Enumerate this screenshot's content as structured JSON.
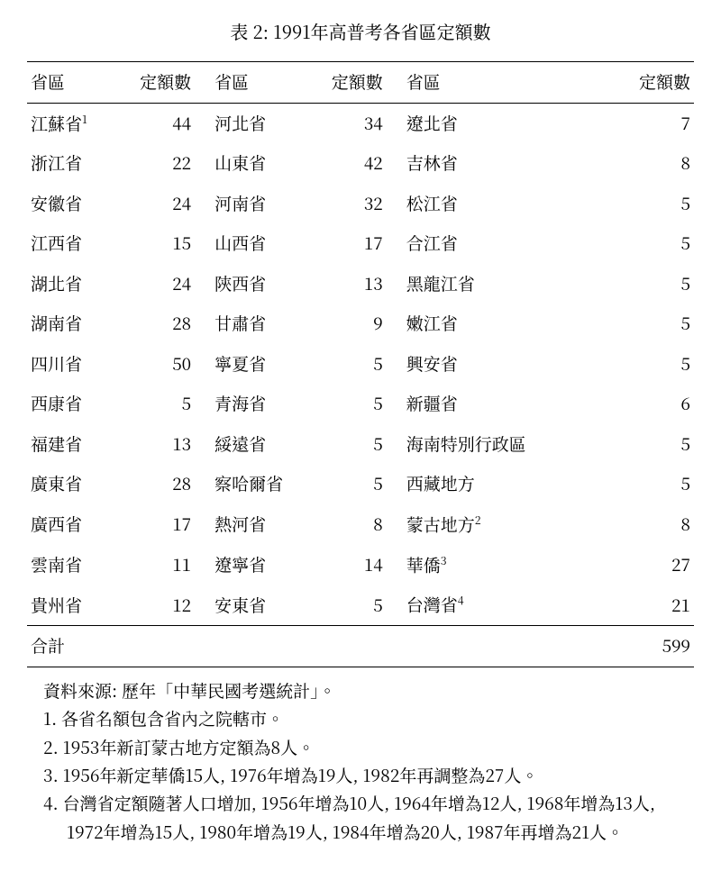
{
  "caption": "表 2: 1991年高普考各省區定額數",
  "headers": {
    "province": "省區",
    "quota": "定額數"
  },
  "columnGroups": [
    [
      {
        "province": "江蘇省",
        "sup": "1",
        "quota": 44
      },
      {
        "province": "浙江省",
        "quota": 22
      },
      {
        "province": "安徽省",
        "quota": 24
      },
      {
        "province": "江西省",
        "quota": 15
      },
      {
        "province": "湖北省",
        "quota": 24
      },
      {
        "province": "湖南省",
        "quota": 28
      },
      {
        "province": "四川省",
        "quota": 50
      },
      {
        "province": "西康省",
        "quota": 5
      },
      {
        "province": "福建省",
        "quota": 13
      },
      {
        "province": "廣東省",
        "quota": 28
      },
      {
        "province": "廣西省",
        "quota": 17
      },
      {
        "province": "雲南省",
        "quota": 11
      },
      {
        "province": "貴州省",
        "quota": 12
      }
    ],
    [
      {
        "province": "河北省",
        "quota": 34
      },
      {
        "province": "山東省",
        "quota": 42
      },
      {
        "province": "河南省",
        "quota": 32
      },
      {
        "province": "山西省",
        "quota": 17
      },
      {
        "province": "陝西省",
        "quota": 13
      },
      {
        "province": "甘肅省",
        "quota": 9
      },
      {
        "province": "寧夏省",
        "quota": 5
      },
      {
        "province": "青海省",
        "quota": 5
      },
      {
        "province": "綏遠省",
        "quota": 5
      },
      {
        "province": "察哈爾省",
        "quota": 5
      },
      {
        "province": "熱河省",
        "quota": 8
      },
      {
        "province": "遼寧省",
        "quota": 14
      },
      {
        "province": "安東省",
        "quota": 5
      }
    ],
    [
      {
        "province": "遼北省",
        "quota": 7
      },
      {
        "province": "吉林省",
        "quota": 8
      },
      {
        "province": "松江省",
        "quota": 5
      },
      {
        "province": "合江省",
        "quota": 5
      },
      {
        "province": "黑龍江省",
        "quota": 5
      },
      {
        "province": "嫩江省",
        "quota": 5
      },
      {
        "province": "興安省",
        "quota": 5
      },
      {
        "province": "新疆省",
        "quota": 6
      },
      {
        "province": "海南特別行政區",
        "quota": 5
      },
      {
        "province": "西藏地方",
        "quota": 5
      },
      {
        "province": "蒙古地方",
        "sup": "2",
        "quota": 8
      },
      {
        "province": "華僑",
        "sup": "3",
        "quota": 27
      },
      {
        "province": "台灣省",
        "sup": "4",
        "quota": 21
      }
    ]
  ],
  "totalLabel": "合計",
  "totalValue": 599,
  "sourceLine": "資料來源: 歷年「中華民國考選統計」。",
  "footnotes": [
    "1. 各省名額包含省內之院轄市。",
    "2. 1953年新訂蒙古地方定額為8人。",
    "3. 1956年新定華僑15人, 1976年增為19人, 1982年再調整為27人。",
    "4. 台灣省定額隨著人口增加, 1956年增為10人, 1964年增為12人, 1968年增為13人, 1972年增為15人, 1980年增為19人, 1984年增為20人, 1987年再增為21人。"
  ]
}
